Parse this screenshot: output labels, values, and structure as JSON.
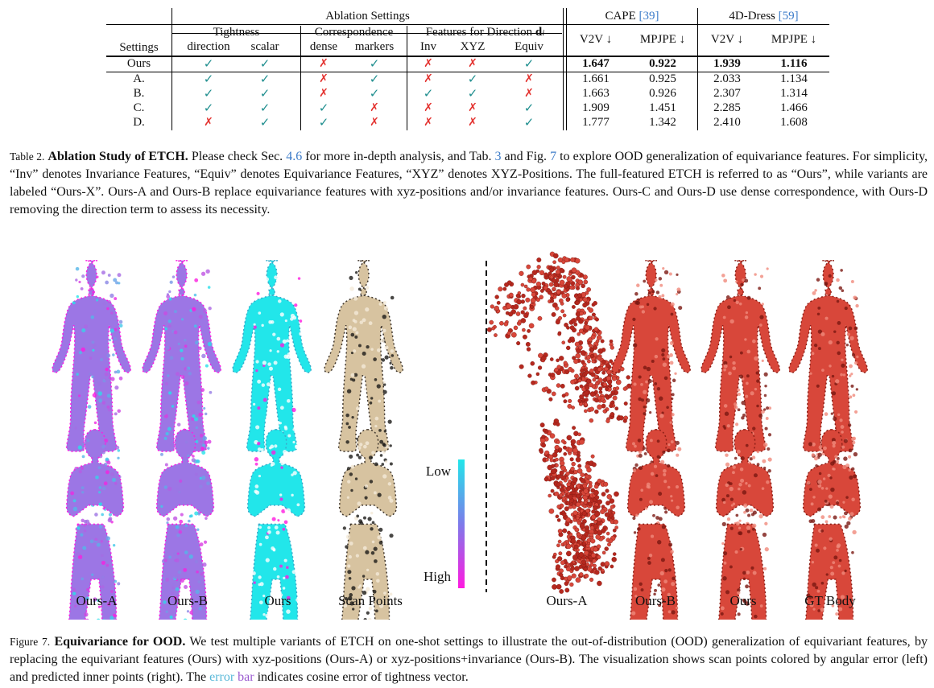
{
  "table": {
    "group_headers": {
      "ablation": "Ablation Settings",
      "tightness": "Tightness",
      "correspondence": "Correspondence",
      "features_prefix": "Features for Direction ",
      "features_symbol": "d",
      "features_sub": "i",
      "cape": "CAPE ",
      "cape_ref": "[39]",
      "dress": "4D-Dress ",
      "dress_ref": "[59]"
    },
    "sub_headers": {
      "settings": "Settings",
      "direction": "direction",
      "scalar": "scalar",
      "dense": "dense",
      "markers": "markers",
      "inv": "Inv",
      "xyz": "XYZ",
      "equiv": "Equiv",
      "v2v": "V2V ↓",
      "mpjpe": "MPJPE ↓",
      "v2v2": "V2V ↓",
      "mpjpe2": "MPJPE ↓"
    },
    "rows": [
      {
        "name": "Ours",
        "marks": [
          "c",
          "c",
          "x",
          "c",
          "x",
          "x",
          "c"
        ],
        "cape_v2v": "1.647",
        "cape_mpjpe": "0.922",
        "dress_v2v": "1.939",
        "dress_mpjpe": "1.116",
        "bold": true
      },
      {
        "name": "A.",
        "marks": [
          "c",
          "c",
          "x",
          "c",
          "x",
          "c",
          "x"
        ],
        "cape_v2v": "1.661",
        "cape_mpjpe": "0.925",
        "dress_v2v": "2.033",
        "dress_mpjpe": "1.134",
        "bold": false
      },
      {
        "name": "B.",
        "marks": [
          "c",
          "c",
          "x",
          "c",
          "c",
          "c",
          "x"
        ],
        "cape_v2v": "1.663",
        "cape_mpjpe": "0.926",
        "dress_v2v": "2.307",
        "dress_mpjpe": "1.314",
        "bold": false
      },
      {
        "name": "C.",
        "marks": [
          "c",
          "c",
          "c",
          "x",
          "x",
          "x",
          "c"
        ],
        "cape_v2v": "1.909",
        "cape_mpjpe": "1.451",
        "dress_v2v": "2.285",
        "dress_mpjpe": "1.466",
        "bold": false
      },
      {
        "name": "D.",
        "marks": [
          "x",
          "c",
          "c",
          "x",
          "x",
          "x",
          "c"
        ],
        "cape_v2v": "1.777",
        "cape_mpjpe": "1.342",
        "dress_v2v": "2.410",
        "dress_mpjpe": "1.608",
        "bold": false
      }
    ],
    "check_glyph": "✓",
    "cross_glyph": "✗",
    "check_color": "#1f8e8e",
    "cross_color": "#e3322f"
  },
  "table_caption": {
    "tag": "Table 2.",
    "title": "Ablation Study of ETCH.",
    "t1": " Please check Sec. ",
    "ref1": "4.6",
    "t2": " for more in-depth analysis, and Tab. ",
    "ref2": "3",
    "t3": " and Fig. ",
    "ref3": "7",
    "t4": " to explore OOD generalization of equivariance features. For simplicity, “Inv” denotes Invariance Features, “Equiv” denotes Equivariance Features, “XYZ” denotes XYZ-Positions. The full-featured ETCH is referred to as “Ours”, while variants are labeled “Ours-X”. Ours-A and Ours-B replace equivariance features with xyz-positions and/or invariance features. Ours-C and Ours-D use dense correspondence, with Ours-D removing the direction term to assess its necessity."
  },
  "figure": {
    "left_labels": [
      "Ours-A",
      "Ours-B",
      "Ours",
      "Scan Points"
    ],
    "right_labels": [
      "Ours-A",
      "Ours-B",
      "Ours",
      "GT Body"
    ],
    "colorbar_low": "Low",
    "colorbar_high": "High",
    "colors": {
      "error_low": "#22e6ea",
      "error_high": "#ff1ae0",
      "inner_points": "#d8473a",
      "scan_skin": "#d7c3a0"
    }
  },
  "figure_caption": {
    "tag": "Figure 7.",
    "title": "Equivariance for OOD.",
    "t1": " We test multiple variants of ETCH on one-shot settings to illustrate the out-of-distribution (OOD) generalization of equivariant features, by replacing the equivariant features (Ours) with xyz-positions (Ours-A) or xyz-positions+invariance (Ours-B). The visualization shows scan points colored by angular error (left) and predicted inner points (right). The ",
    "err1": "error",
    "err2": "bar",
    "t2": " indicates cosine error of tightness vector."
  }
}
